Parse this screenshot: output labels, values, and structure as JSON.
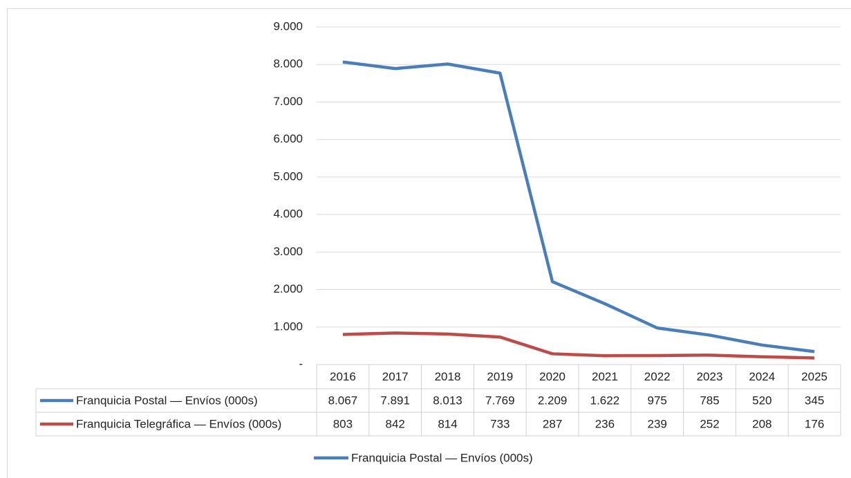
{
  "chart_data": {
    "type": "line",
    "categories": [
      "2016",
      "2017",
      "2018",
      "2019",
      "2020",
      "2021",
      "2022",
      "2023",
      "2024",
      "2025"
    ],
    "series": [
      {
        "name": "Franquicia Postal — Envíos (000s)",
        "color": "#4a7ebb",
        "values": [
          8067,
          7891,
          8013,
          7769,
          2209,
          1622,
          975,
          785,
          520,
          345
        ],
        "value_labels": [
          "8.067",
          "7.891",
          "8.013",
          "7.769",
          "2.209",
          "1.622",
          "975",
          "785",
          "520",
          "345"
        ]
      },
      {
        "name": "Franquicia Telegráfica — Envíos (000s)",
        "color": "#be4b48",
        "values": [
          803,
          842,
          814,
          733,
          287,
          236,
          239,
          252,
          208,
          176
        ],
        "value_labels": [
          "803",
          "842",
          "814",
          "733",
          "287",
          "236",
          "239",
          "252",
          "208",
          "176"
        ]
      }
    ],
    "ylim": [
      0,
      9000
    ],
    "yticks": [
      {
        "value": 0,
        "label": "-"
      },
      {
        "value": 1000,
        "label": "1.000"
      },
      {
        "value": 2000,
        "label": "2.000"
      },
      {
        "value": 3000,
        "label": "3.000"
      },
      {
        "value": 4000,
        "label": "4.000"
      },
      {
        "value": 5000,
        "label": "5.000"
      },
      {
        "value": 6000,
        "label": "6.000"
      },
      {
        "value": 7000,
        "label": "7.000"
      },
      {
        "value": 8000,
        "label": "8.000"
      },
      {
        "value": 9000,
        "label": "9.000"
      }
    ],
    "grid": true,
    "legend": "bottom"
  }
}
